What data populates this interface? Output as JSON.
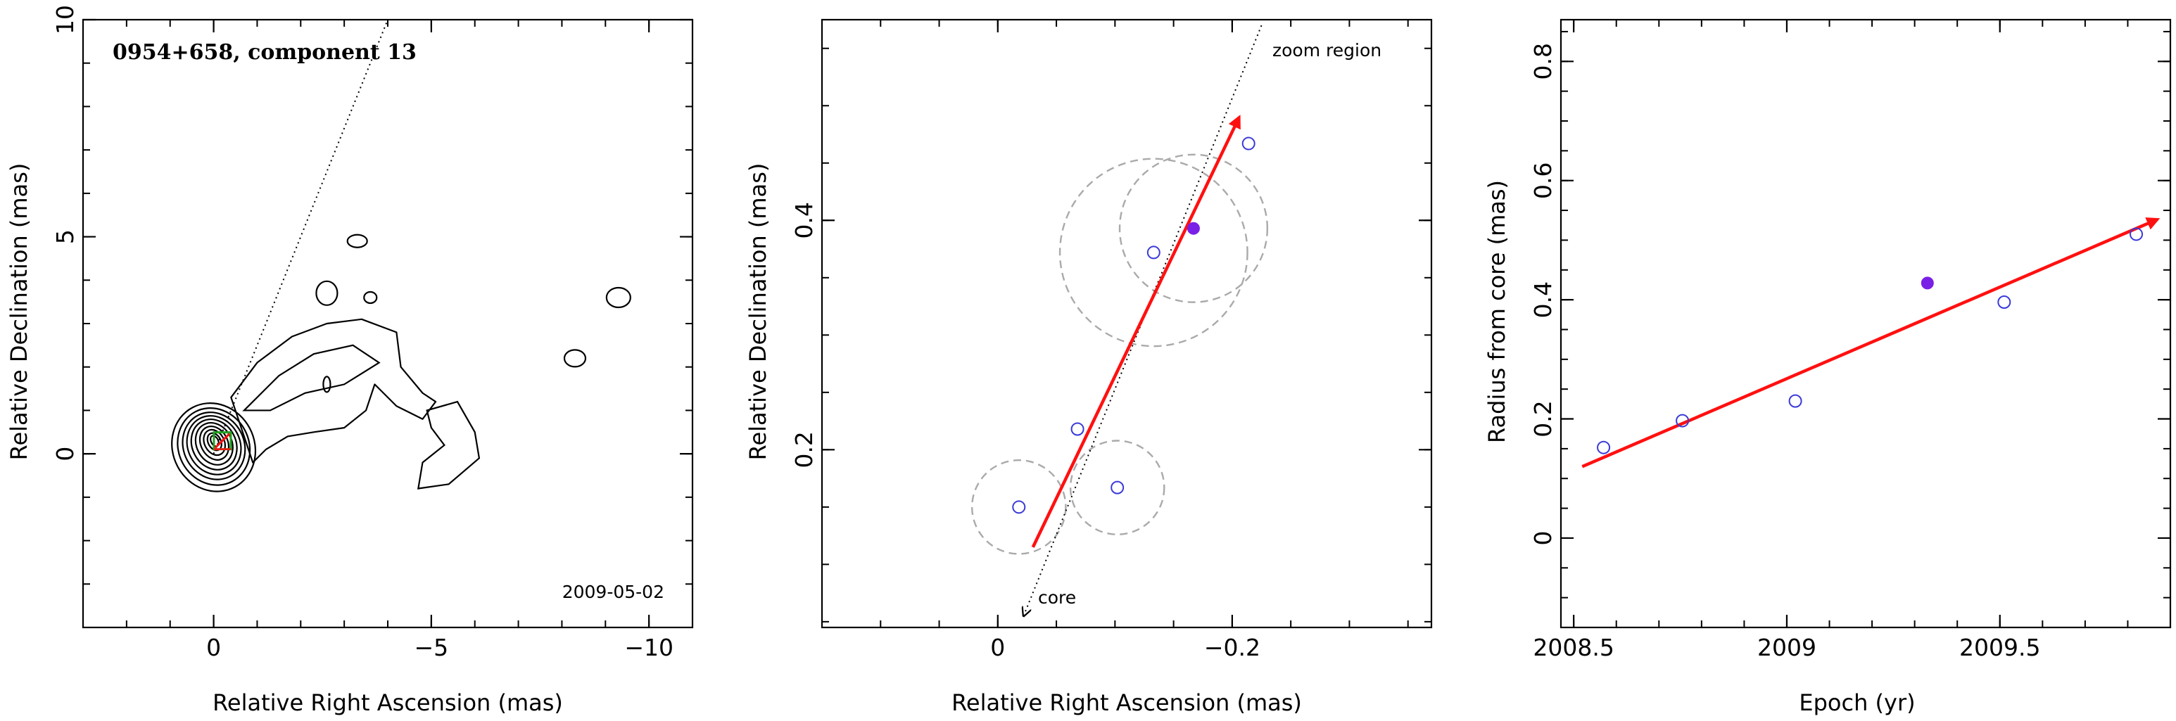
{
  "chart_data": [
    {
      "type": "contour",
      "title": "0954+658, component 13",
      "annotation": "2009-05-02",
      "xlabel": "Relative Right Ascension (mas)",
      "ylabel": "Relative Declination (mas)",
      "xlim": [
        3,
        -11
      ],
      "ylim": [
        -4,
        10
      ],
      "xticks": [
        0,
        -5,
        -10
      ],
      "yticks": [
        0,
        5,
        10
      ],
      "xtick_labels": [
        "0",
        "−5",
        "−10"
      ],
      "ytick_labels": [
        "0",
        "5",
        "10"
      ],
      "component_marker": {
        "x": -0.2,
        "y": 0.3
      },
      "jet_direction_line": [
        [
          0.0,
          0.0
        ],
        [
          -4.0,
          10.0
        ]
      ],
      "contour_islands": [
        {
          "x": -3.3,
          "y": 4.9
        },
        {
          "x": -2.6,
          "y": 3.7
        },
        {
          "x": -3.6,
          "y": 3.6
        },
        {
          "x": -9.3,
          "y": 3.6
        },
        {
          "x": -8.3,
          "y": 2.2
        },
        {
          "x": -2.6,
          "y": 1.6
        }
      ]
    },
    {
      "type": "scatter",
      "annotations": [
        "zoom region",
        "core"
      ],
      "xlabel": "Relative Right Ascension (mas)",
      "ylabel": "Relative Declination (mas)",
      "xlim": [
        0.15,
        -0.37
      ],
      "ylim": [
        0.045,
        0.575
      ],
      "xticks": [
        0,
        -0.2
      ],
      "yticks": [
        0.2,
        0.4
      ],
      "xtick_labels": [
        "0",
        "−0.2"
      ],
      "ytick_labels": [
        "0.2",
        "0.4"
      ],
      "points": [
        {
          "x": -0.018,
          "y": 0.15,
          "filled": false
        },
        {
          "x": -0.068,
          "y": 0.218,
          "filled": false
        },
        {
          "x": -0.102,
          "y": 0.167,
          "filled": false
        },
        {
          "x": -0.133,
          "y": 0.372,
          "filled": false
        },
        {
          "x": -0.167,
          "y": 0.393,
          "filled": true
        },
        {
          "x": -0.214,
          "y": 0.467,
          "filled": false
        }
      ],
      "error_circles": [
        {
          "x": -0.018,
          "y": 0.15,
          "r": 0.04
        },
        {
          "x": -0.102,
          "y": 0.167,
          "r": 0.04
        },
        {
          "x": -0.133,
          "y": 0.372,
          "r": 0.08
        },
        {
          "x": -0.167,
          "y": 0.393,
          "r": 0.063
        }
      ],
      "arrow": {
        "from": [
          -0.03,
          0.115
        ],
        "to": [
          -0.206,
          0.49
        ]
      },
      "direction_line": {
        "from": [
          -0.022,
          0.055
        ],
        "to": [
          -0.225,
          0.57
        ]
      }
    },
    {
      "type": "scatter",
      "xlabel": "Epoch (yr)",
      "ylabel": "Radius from core (mas)",
      "xlim": [
        2008.47,
        2009.9
      ],
      "ylim": [
        -0.15,
        0.87
      ],
      "xticks": [
        2008.5,
        2009,
        2009.5
      ],
      "yticks": [
        0,
        0.2,
        0.4,
        0.6,
        0.8
      ],
      "xtick_labels": [
        "2008.5",
        "2009",
        "2009.5"
      ],
      "ytick_labels": [
        "0",
        "0.2",
        "0.4",
        "0.6",
        "0.8"
      ],
      "points": [
        {
          "x": 2008.57,
          "y": 0.152,
          "filled": false
        },
        {
          "x": 2008.755,
          "y": 0.197,
          "filled": false
        },
        {
          "x": 2009.02,
          "y": 0.23,
          "filled": false
        },
        {
          "x": 2009.33,
          "y": 0.428,
          "filled": true
        },
        {
          "x": 2009.51,
          "y": 0.396,
          "filled": false
        },
        {
          "x": 2009.82,
          "y": 0.51,
          "filled": false
        }
      ],
      "fit_arrow": {
        "from": [
          2008.52,
          0.12
        ],
        "to": [
          2009.87,
          0.535
        ]
      }
    }
  ],
  "colors": {
    "axis": "#000000",
    "contour": "#000000",
    "point": "#3a3ad8",
    "point_filled": "#7a1fe6",
    "arrow": "#ff1010",
    "circle": "#aaaaaa",
    "marker": "#22a022"
  }
}
